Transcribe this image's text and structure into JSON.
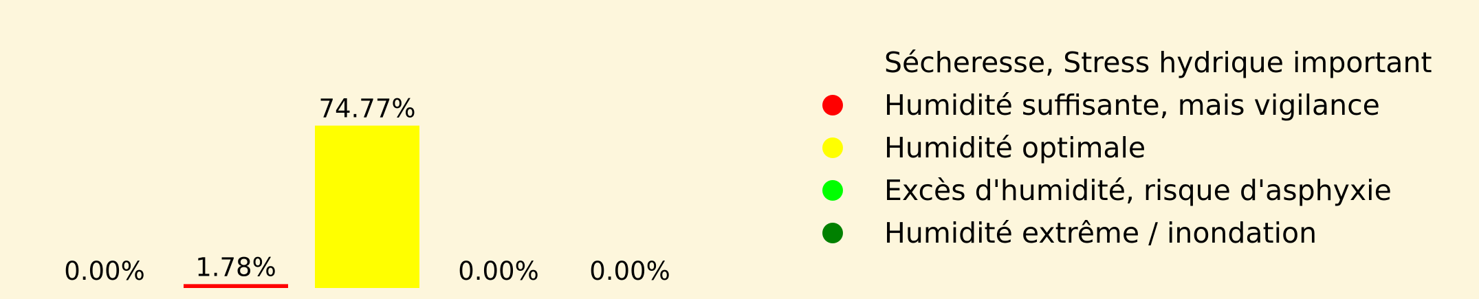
{
  "chart_data": {
    "type": "bar",
    "title": "",
    "xlabel": "",
    "ylabel": "",
    "ylim": [
      0,
      100
    ],
    "grid": false,
    "legend_position": "right",
    "categories": [
      "Sécheresse, Stress hydrique important",
      "Humidité suffisante, mais vigilance",
      "Humidité optimale",
      "Excès d'humidité, risque d'asphyxie",
      "Humidité extrême / inondation"
    ],
    "values": [
      0.0,
      1.78,
      74.77,
      0.0,
      0.0
    ],
    "value_labels": [
      "0.00%",
      "1.78%",
      "74.77%",
      "0.00%",
      "0.00%"
    ],
    "colors": [
      "#fdf6dc",
      "#ff0000",
      "#ffff00",
      "#00ff00",
      "#008000"
    ],
    "legend": [
      {
        "label": "Sécheresse, Stress hydrique important",
        "color": "#fdf6dc"
      },
      {
        "label": "Humidité suffisante, mais vigilance",
        "color": "#ff0000"
      },
      {
        "label": "Humidité optimale",
        "color": "#ffff00"
      },
      {
        "label": "Excès d'humidité, risque d'asphyxie",
        "color": "#00ff00"
      },
      {
        "label": "Humidité extrême / inondation",
        "color": "#008000"
      }
    ]
  }
}
